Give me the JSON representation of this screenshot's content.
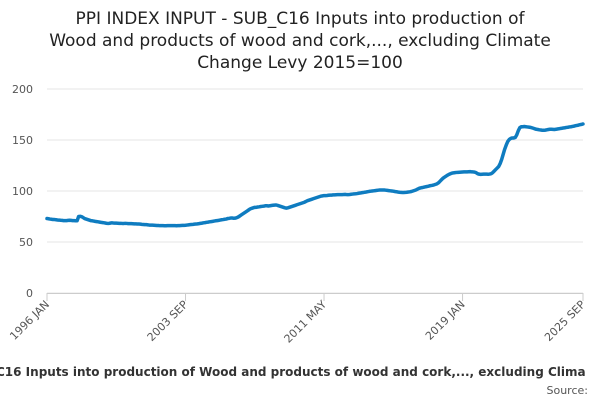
{
  "chart_data": {
    "type": "line",
    "title": [
      "PPI INDEX INPUT - SUB_C16 Inputs into production of",
      "Wood and products of wood and cork,..., excluding Climate",
      "Change Levy 2015=100"
    ],
    "caption": "C16 Inputs into production of Wood and products of wood and cork,..., excluding Clima",
    "source": "Source:",
    "categories": [
      "1996 JAN",
      null,
      null,
      null,
      null,
      null,
      null,
      null,
      null,
      null,
      null,
      null,
      null,
      null,
      null,
      null,
      null,
      null,
      null,
      null,
      null,
      null,
      null,
      null,
      null,
      null,
      null,
      null,
      null,
      null,
      null,
      null,
      null,
      null,
      null,
      null,
      null,
      null,
      null,
      null,
      null,
      null,
      null,
      null,
      null,
      null,
      null,
      null,
      null,
      null,
      null,
      null,
      null,
      null,
      null,
      null,
      null,
      null,
      null,
      null,
      null,
      null,
      null,
      null,
      null,
      null,
      null,
      null,
      null,
      null,
      null,
      null,
      null,
      null,
      null,
      null,
      null,
      null,
      null,
      null,
      null,
      null,
      null,
      null,
      null,
      null,
      null,
      null,
      null,
      null,
      null,
      null,
      "2003 SEP",
      null,
      null,
      null,
      null,
      null,
      null,
      null,
      null,
      null,
      null,
      null,
      null,
      null,
      null,
      null,
      null,
      null,
      null,
      null,
      null,
      null,
      null,
      null,
      null,
      null,
      null,
      null,
      null,
      null,
      null,
      null,
      null,
      null,
      null,
      null,
      null,
      null,
      null,
      null,
      null,
      null,
      null,
      null,
      null,
      null,
      null,
      null,
      null,
      null,
      null,
      null,
      null,
      null,
      null,
      null,
      null,
      null,
      null,
      null,
      null,
      null,
      null,
      null,
      null,
      null,
      null,
      null,
      null,
      null,
      null,
      null,
      null,
      null,
      null,
      null,
      null,
      null,
      null,
      null,
      null,
      null,
      null,
      null,
      null,
      null,
      null,
      null,
      null,
      null,
      null,
      null,
      "2011 MAY",
      null,
      null,
      null,
      null,
      null,
      null,
      null,
      null,
      null,
      null,
      null,
      null,
      null,
      null,
      null,
      null,
      null,
      null,
      null,
      null,
      null,
      null,
      null,
      null,
      null,
      null,
      null,
      null,
      null,
      null,
      null,
      null,
      null,
      null,
      null,
      null,
      null,
      null,
      null,
      null,
      null,
      null,
      null,
      null,
      null,
      null,
      null,
      null,
      null,
      null,
      null,
      null,
      null,
      null,
      null,
      null,
      null,
      null,
      null,
      null,
      null,
      null,
      null,
      null,
      null,
      null,
      null,
      null,
      null,
      null,
      null,
      null,
      null,
      null,
      null,
      null,
      null,
      null,
      null,
      null,
      null,
      null,
      null,
      null,
      null,
      null,
      null,
      null,
      null,
      null,
      null,
      "2019 JAN",
      null,
      null,
      null,
      null,
      null,
      null,
      null,
      null,
      null,
      null,
      null,
      null,
      null,
      null,
      null,
      null,
      null,
      null,
      null,
      null,
      null,
      null,
      null,
      null,
      null,
      null,
      null,
      null,
      null,
      null,
      null,
      null,
      null,
      null,
      null,
      null,
      null,
      null,
      null,
      null,
      null,
      null,
      null,
      null,
      null,
      null,
      null,
      null,
      null,
      null,
      null,
      null,
      null,
      null,
      null,
      null,
      null,
      null,
      null,
      null,
      null,
      null,
      null,
      null,
      null,
      null,
      null,
      null,
      null,
      null,
      null,
      null,
      null,
      null,
      null,
      null,
      null,
      null,
      null,
      "2025 SEP"
    ],
    "series": [
      {
        "color": "#0f7cc0",
        "values": [
          73,
          72.8,
          72.5,
          72.3,
          72,
          72,
          71.8,
          71.6,
          71.5,
          71.3,
          71.2,
          71,
          71,
          71,
          71.2,
          71.3,
          71.2,
          71,
          71,
          70.8,
          70.8,
          75,
          75.2,
          74.8,
          74,
          73,
          72.5,
          72,
          71.5,
          71,
          70.8,
          70.5,
          70.2,
          70,
          69.8,
          69.5,
          69.2,
          69,
          68.8,
          68.5,
          68.3,
          68.2,
          68.5,
          68.8,
          68.6,
          68.5,
          68.5,
          68.4,
          68.3,
          68.3,
          68.2,
          68.2,
          68.3,
          68.2,
          68,
          68,
          68,
          67.9,
          67.8,
          67.8,
          67.7,
          67.6,
          67.5,
          67.3,
          67.2,
          67,
          67,
          66.8,
          66.6,
          66.5,
          66.5,
          66.4,
          66.3,
          66.2,
          66.2,
          66,
          66,
          66,
          65.9,
          65.9,
          66,
          66,
          66.1,
          66,
          66,
          66,
          65.9,
          66,
          66.1,
          66.2,
          66.3,
          66.3,
          66.4,
          66.6,
          66.8,
          67,
          67.2,
          67.3,
          67.5,
          67.6,
          67.8,
          68,
          68.3,
          68.5,
          68.8,
          69,
          69.3,
          69.5,
          69.8,
          70,
          70.2,
          70.5,
          70.8,
          71,
          71.2,
          71.5,
          71.8,
          72,
          72.3,
          72.5,
          73,
          73.2,
          73.5,
          73.5,
          73.3,
          73.4,
          73.8,
          74.5,
          75.5,
          76.5,
          77.5,
          78.5,
          79.5,
          80.5,
          81.5,
          82.5,
          83,
          83.5,
          84,
          84,
          84.3,
          84.5,
          84.8,
          85,
          85.2,
          85.5,
          85.5,
          85.3,
          85.5,
          85.8,
          86,
          86.2,
          86.3,
          86,
          85.5,
          85,
          84.5,
          84,
          83.5,
          83.2,
          83.5,
          84,
          84.5,
          85,
          85.5,
          86,
          86.5,
          87,
          87.5,
          88,
          88.5,
          89,
          89.8,
          90.5,
          91,
          91.5,
          92,
          92.5,
          93,
          93.5,
          94,
          94.5,
          95,
          95.2,
          95.5,
          95.5,
          95.6,
          95.8,
          96,
          96,
          96.2,
          96.2,
          96.3,
          96.4,
          96.5,
          96.5,
          96.5,
          96.6,
          96.7,
          96.5,
          96.5,
          96.6,
          96.8,
          97,
          97.2,
          97.3,
          97.5,
          97.8,
          98,
          98.3,
          98.5,
          98.8,
          99,
          99.3,
          99.6,
          99.8,
          100,
          100.2,
          100.4,
          100.6,
          100.8,
          101,
          101,
          101,
          101,
          100.8,
          100.6,
          100.4,
          100.2,
          100,
          99.8,
          99.5,
          99.3,
          99,
          98.8,
          98.6,
          98.5,
          98.5,
          98.6,
          98.8,
          99,
          99.2,
          99.5,
          100,
          100.5,
          101,
          101.8,
          102.5,
          103,
          103.3,
          103.6,
          104,
          104.3,
          104.6,
          105,
          105.3,
          105.6,
          106,
          106.5,
          107,
          108,
          109.5,
          111,
          112.5,
          113.5,
          114.5,
          115.5,
          116.3,
          117,
          117.5,
          117.8,
          118,
          118.2,
          118.3,
          118.4,
          118.5,
          118.6,
          118.7,
          118.8,
          118.8,
          118.9,
          119,
          118.8,
          118.7,
          118.5,
          118,
          117,
          116.5,
          116.3,
          116.4,
          116.5,
          116.6,
          116.5,
          116.4,
          116.6,
          117,
          118,
          119.5,
          121,
          122.5,
          124,
          127,
          131,
          136,
          141,
          145,
          148.5,
          150.5,
          151.5,
          152,
          152,
          152.5,
          155,
          159,
          162,
          163,
          163,
          163.2,
          163,
          162.8,
          162.6,
          162.4,
          162,
          161.5,
          161,
          160.5,
          160.3,
          160,
          159.8,
          159.5,
          159.5,
          159.7,
          160,
          160.3,
          160.5,
          160.5,
          160.4,
          160.3,
          160.5,
          160.8,
          161,
          161.3,
          161.5,
          161.8,
          162,
          162.3,
          162.5,
          162.8,
          163,
          163.3,
          163.6,
          164,
          164.3,
          164.6,
          165,
          165.3,
          165.7
        ]
      }
    ],
    "ylim": [
      0,
      200
    ],
    "yticks": [
      0,
      50,
      100,
      150,
      200
    ],
    "grid": true
  }
}
